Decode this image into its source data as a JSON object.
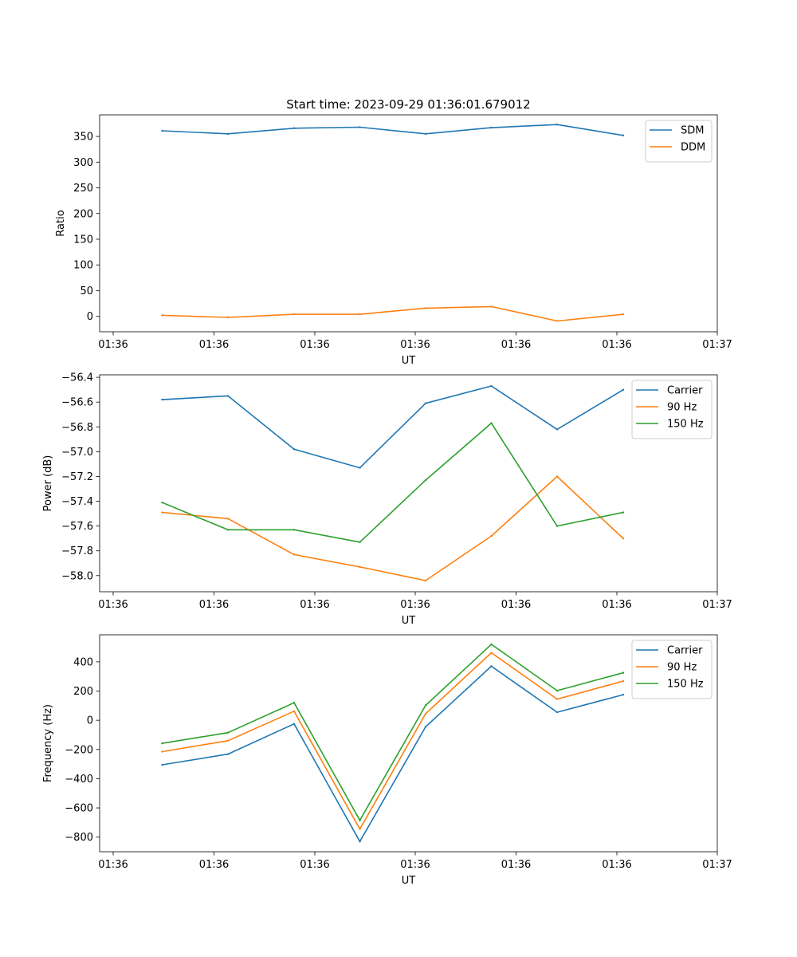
{
  "figure_title": "Start time: 2023-09-29 01:36:01.679012",
  "colors": {
    "blue": "#1f77b4",
    "orange": "#ff7f0e",
    "green": "#2ca02c"
  },
  "chart_data": [
    {
      "type": "line",
      "title": "Start time: 2023-09-29 01:36:01.679012",
      "xlabel": "UT",
      "ylabel": "Ratio",
      "xticks": [
        "01:36",
        "01:36",
        "01:36",
        "01:36",
        "01:36",
        "01:36",
        "01:37"
      ],
      "ylim": [
        -30,
        392
      ],
      "yticks": [
        0,
        50,
        100,
        150,
        200,
        250,
        300,
        350
      ],
      "ytick_labels": [
        "0",
        "50",
        "100",
        "150",
        "200",
        "250",
        "300",
        "350"
      ],
      "legend_position": "top-right",
      "series": [
        {
          "name": "SDM",
          "color": "#1f77b4",
          "values": [
            361,
            355,
            366,
            368,
            355,
            367,
            373,
            352
          ]
        },
        {
          "name": "DDM",
          "color": "#ff7f0e",
          "values": [
            2,
            -2,
            4,
            4,
            16,
            19,
            -9,
            4
          ]
        }
      ]
    },
    {
      "type": "line",
      "title": "",
      "xlabel": "UT",
      "ylabel": "Power (dB)",
      "xticks": [
        "01:36",
        "01:36",
        "01:36",
        "01:36",
        "01:36",
        "01:36",
        "01:37"
      ],
      "ylim": [
        -58.13,
        -56.38
      ],
      "yticks": [
        -58.0,
        -57.8,
        -57.6,
        -57.4,
        -57.2,
        -57.0,
        -56.8,
        -56.6,
        -56.4
      ],
      "ytick_labels": [
        "−58.0",
        "−57.8",
        "−57.6",
        "−57.4",
        "−57.2",
        "−57.0",
        "−56.8",
        "−56.6",
        "−56.4"
      ],
      "legend_position": "top-right",
      "series": [
        {
          "name": "Carrier",
          "color": "#1f77b4",
          "values": [
            -56.58,
            -56.55,
            -56.98,
            -57.13,
            -56.61,
            -56.47,
            -56.82,
            -56.5
          ]
        },
        {
          "name": "90 Hz",
          "color": "#ff7f0e",
          "values": [
            -57.49,
            -57.54,
            -57.83,
            -57.93,
            -58.04,
            -57.68,
            -57.2,
            -57.7
          ]
        },
        {
          "name": "150 Hz",
          "color": "#2ca02c",
          "values": [
            -57.41,
            -57.63,
            -57.63,
            -57.73,
            -57.23,
            -56.77,
            -57.6,
            -57.49
          ]
        }
      ]
    },
    {
      "type": "line",
      "title": "",
      "xlabel": "UT",
      "ylabel": "Frequency (Hz)",
      "xticks": [
        "01:36",
        "01:36",
        "01:36",
        "01:36",
        "01:36",
        "01:36",
        "01:37"
      ],
      "ylim": [
        -900,
        585
      ],
      "yticks": [
        -800,
        -600,
        -400,
        -200,
        0,
        200,
        400
      ],
      "ytick_labels": [
        "−800",
        "−600",
        "−400",
        "−200",
        "0",
        "200",
        "400"
      ],
      "legend_position": "top-right",
      "series": [
        {
          "name": "Carrier",
          "color": "#1f77b4",
          "values": [
            -305,
            -232,
            -25,
            -830,
            -45,
            370,
            55,
            175
          ]
        },
        {
          "name": "90 Hz",
          "color": "#ff7f0e",
          "values": [
            -215,
            -140,
            62,
            -745,
            45,
            462,
            145,
            268
          ]
        },
        {
          "name": "150 Hz",
          "color": "#2ca02c",
          "values": [
            -158,
            -85,
            120,
            -685,
            102,
            520,
            203,
            325
          ]
        }
      ]
    }
  ]
}
